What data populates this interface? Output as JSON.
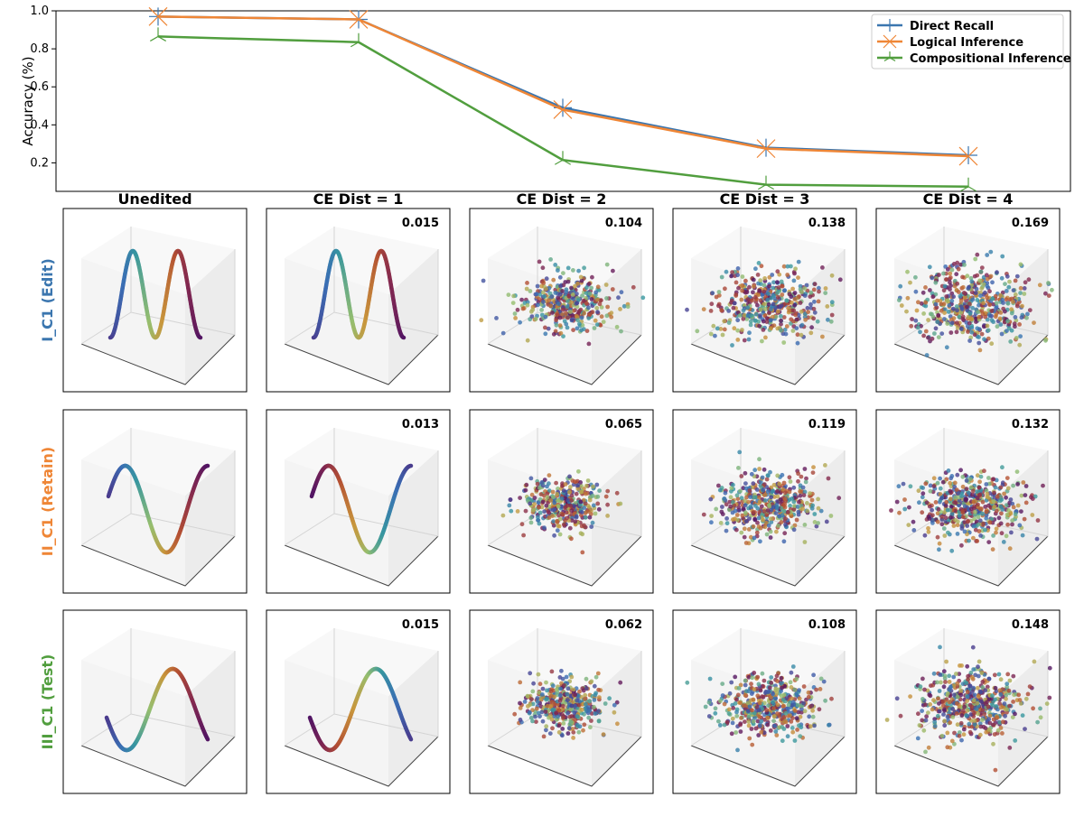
{
  "chart_data": [
    {
      "type": "line",
      "ylabel": "Accuracy (%)",
      "x": [
        0,
        1,
        2,
        3,
        4
      ],
      "ylim": [
        0.05,
        1.0
      ],
      "yticks": [
        "0.2",
        "0.4",
        "0.6",
        "0.8",
        "1.0"
      ],
      "ytick_values": [
        0.2,
        0.4,
        0.6,
        0.8,
        1.0
      ],
      "grid": false,
      "legend_position": "top-right",
      "series": [
        {
          "name": "Direct Recall",
          "color": "#3b76af",
          "marker": "plus",
          "values": [
            0.97,
            0.955,
            0.49,
            0.28,
            0.24
          ]
        },
        {
          "name": "Logical Inference",
          "color": "#ef8636",
          "marker": "x",
          "values": [
            0.97,
            0.955,
            0.48,
            0.275,
            0.235
          ]
        },
        {
          "name": "Compositional Inference",
          "color": "#519e3e",
          "marker": "tri",
          "values": [
            0.865,
            0.835,
            0.215,
            0.085,
            0.075
          ]
        }
      ]
    },
    {
      "type": "scatter",
      "columns": [
        "Unedited",
        "CE Dist = 1",
        "CE Dist = 2",
        "CE Dist = 3",
        "CE Dist = 4"
      ],
      "rows": [
        {
          "label": "I_C1 (Edit)",
          "color": "#3b76af",
          "curve": "double",
          "scores": [
            "",
            "0.015",
            "0.104",
            "0.138",
            "0.169"
          ]
        },
        {
          "label": "II_C1 (Retain)",
          "color": "#ef8636",
          "curve": "single",
          "scores": [
            "",
            "0.013",
            "0.065",
            "0.119",
            "0.132"
          ]
        },
        {
          "label": "III_C1 (Test)",
          "color": "#519e3e",
          "curve": "single-b",
          "scores": [
            "",
            "0.015",
            "0.062",
            "0.108",
            "0.148"
          ]
        }
      ]
    }
  ]
}
